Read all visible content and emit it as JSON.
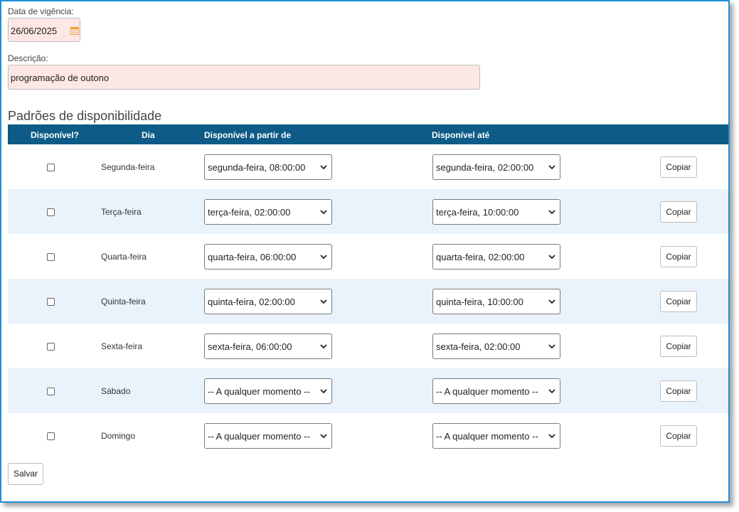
{
  "form": {
    "effective_date_label": "Data de vigência:",
    "effective_date_value": "26/06/2025",
    "description_label": "Descrição:",
    "description_value": "programação de outono"
  },
  "section": {
    "title": "Padrões de disponibilidade"
  },
  "table": {
    "headers": [
      "Disponível?",
      "Dia",
      "Disponível a partir de",
      "Disponível até"
    ],
    "rows": [
      {
        "day": "Segunda-feira",
        "from": "segunda-feira, 08:00:00",
        "until": "segunda-feira, 02:00:00",
        "copy": "Copiar",
        "checked": false
      },
      {
        "day": "Terça-feira",
        "from": "terça-feira, 02:00:00",
        "until": "terça-feira, 10:00:00",
        "copy": "Copiar",
        "checked": false
      },
      {
        "day": "Quarta-feira",
        "from": "quarta-feira, 06:00:00",
        "until": "quarta-feira, 02:00:00",
        "copy": "Copiar",
        "checked": false
      },
      {
        "day": "Quinta-feira",
        "from": "quinta-feira, 02:00:00",
        "until": "quinta-feira, 10:00:00",
        "copy": "Copiar",
        "checked": false
      },
      {
        "day": "Sexta-feira",
        "from": "sexta-feira, 06:00:00",
        "until": "sexta-feira, 02:00:00",
        "copy": "Copiar",
        "checked": false
      },
      {
        "day": "Sábado",
        "from": "-- A qualquer momento --",
        "until": "-- A qualquer momento --",
        "copy": "Copiar",
        "checked": false
      },
      {
        "day": "Domingo",
        "from": "-- A qualquer momento --",
        "until": "-- A qualquer momento --",
        "copy": "Copiar",
        "checked": false
      }
    ]
  },
  "actions": {
    "save_label": "Salvar"
  },
  "colors": {
    "header_bg": "#0d5b86",
    "alt_row_bg": "#eaf3fb",
    "required_field_bg": "#fde7e5",
    "frame_border": "#1e8fd6",
    "calendar_icon": "#f0a030"
  },
  "icons": {
    "date_picker": "calendar-icon",
    "select_arrow": "chevron-down-icon"
  }
}
